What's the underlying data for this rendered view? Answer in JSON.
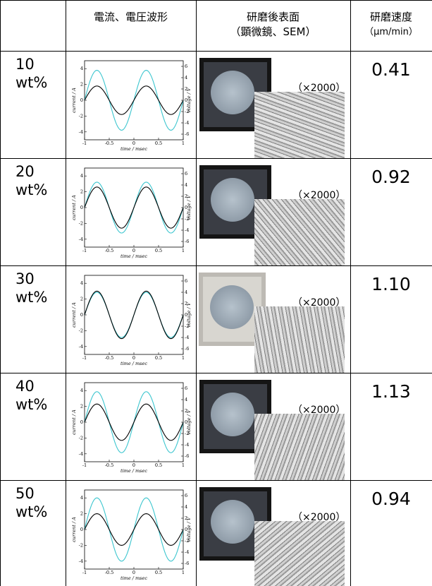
{
  "header": {
    "waveform": "電流、電圧波形",
    "surface": [
      "研磨後表面",
      "（顕微鏡、SEM）"
    ],
    "rate": [
      "研磨速度",
      "（μm/min）"
    ]
  },
  "waveform_axes": {
    "x_label": "time / msec",
    "y_label": "current / A",
    "y2_label": "voltage / V",
    "xlim": [
      -1,
      1
    ],
    "xticks": [
      -1,
      -0.5,
      0,
      0.5,
      1
    ],
    "ylim": [
      -5,
      5
    ],
    "yticks": [
      4,
      2,
      0,
      -2,
      -4
    ],
    "y2lim": [
      -7,
      7
    ],
    "y2ticks": [
      6,
      4,
      2,
      0,
      -2,
      -4,
      -6
    ],
    "current_color": "#000000",
    "voltage_color": "#3cc6cf"
  },
  "rows": [
    {
      "concentration": [
        "10",
        "wt%"
      ],
      "current_amplitude": 1.8,
      "voltage_amplitude": 5.3,
      "magnification": "（×2000）",
      "rate": "0.41"
    },
    {
      "concentration": [
        "20",
        "wt%"
      ],
      "current_amplitude": 2.6,
      "voltage_amplitude": 4.5,
      "magnification": "（×2000）",
      "rate": "0.92"
    },
    {
      "concentration": [
        "30",
        "wt%"
      ],
      "current_amplitude": 3.0,
      "voltage_amplitude": 4.0,
      "magnification": "（×2000）",
      "rate": "1.10"
    },
    {
      "concentration": [
        "40",
        "wt%"
      ],
      "current_amplitude": 2.3,
      "voltage_amplitude": 5.4,
      "magnification": "（×2000）",
      "rate": "1.13"
    },
    {
      "concentration": [
        "50",
        "wt%"
      ],
      "current_amplitude": 2.0,
      "voltage_amplitude": 5.6,
      "magnification": "（×2000）",
      "rate": "0.94"
    }
  ]
}
